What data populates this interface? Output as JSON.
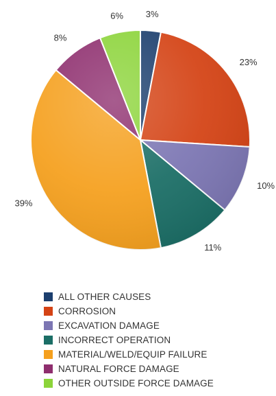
{
  "chart_data": {
    "type": "pie",
    "title": "",
    "categories": [
      "ALL OTHER CAUSES",
      "CORROSION",
      "EXCAVATION DAMAGE",
      "INCORRECT OPERATION",
      "MATERIAL/WELD/EQUIP FAILURE",
      "NATURAL FORCE DAMAGE",
      "OTHER OUTSIDE FORCE DAMAGE"
    ],
    "values": [
      3,
      23,
      10,
      11,
      39,
      8,
      6
    ],
    "labels": [
      "3%",
      "23%",
      "10%",
      "11%",
      "39%",
      "8%",
      "6%"
    ],
    "colors": [
      "#1c3f6e",
      "#d44315",
      "#7c76b3",
      "#1b6e66",
      "#f5a01e",
      "#8e2e6e",
      "#8cd43a"
    ],
    "start_angle": "12 o'clock",
    "direction": "clockwise",
    "legend_position": "bottom"
  }
}
